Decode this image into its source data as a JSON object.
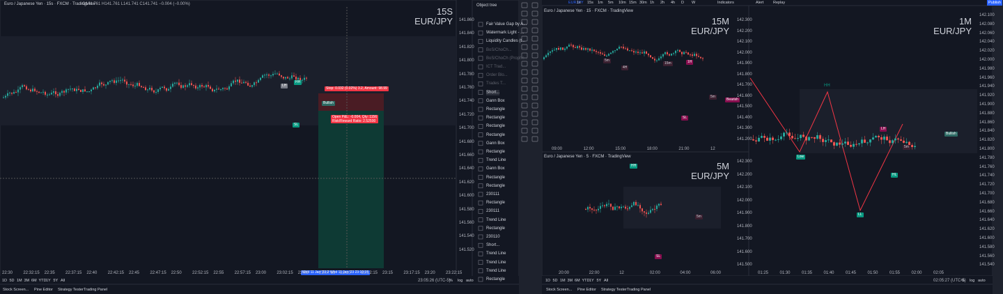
{
  "left_chart": {
    "title": "Euro / Japanese Yen · 15s · FXCM · TradingView",
    "ohlc": "O141.761 H141.761 L141.741 C141.741 −0.004 (−0.00%)",
    "watermark": [
      "15S",
      "EUR/JPY"
    ],
    "price_ticks": [
      "141.860",
      "141.840",
      "141.820",
      "141.800",
      "141.780",
      "141.760",
      "141.740",
      "141.720",
      "141.700",
      "141.680",
      "141.660",
      "141.640",
      "141.620",
      "141.600",
      "141.580",
      "141.560",
      "141.540",
      "141.520"
    ],
    "time_ticks": [
      "22:30",
      "22:32:15",
      "22:35",
      "22:37:15",
      "22:40",
      "22:42:15",
      "22:45",
      "22:47:15",
      "22:50",
      "22:52:15",
      "22:55",
      "22:57:15",
      "23:00",
      "23:02:15",
      "23:05",
      "23:07:15",
      "23:10",
      "23:12:15",
      "23:15",
      "23:17:15",
      "23:20",
      "23:22:15"
    ],
    "date_labels": [
      "Wed 11 Jan '23 23:0",
      "Wed 11 Jan '23 23:10:15"
    ],
    "labels": {
      "hh": "HH",
      "lh": "LH",
      "sl": "SL",
      "bullish": "Bullish"
    },
    "position": {
      "stop": "Stop: 0.032 (0.02%) 3.2, Amount: 98.99",
      "open": "Open P&L: -0.004, Qty: 1156",
      "ratio": "Risk/Reward Ratio: 2.52500"
    },
    "clock": "23:05:26 (UTC-5)"
  },
  "object_tree": {
    "title": "Object tree",
    "items": [
      "Fair Value Gap by A...",
      "Watermark Light - ...",
      "Liquidity Candles (t...",
      "BoS/ChoCh...",
      "BoS/ChoCh (Prophe...",
      "ICT Trad...",
      "Order Blo...",
      "Trades T...",
      "Short...",
      "Gann Box",
      "Rectangle",
      "Rectangle",
      "Rectangle",
      "Rectangle",
      "Gann Box",
      "Rectangle",
      "Trend Line",
      "Gann Box",
      "Rectangle",
      "Rectangle",
      "230111",
      "Rectangle",
      "230111",
      "Trend Line",
      "Rectangle",
      "230110",
      "Short...",
      "Trend Line",
      "Trend Line",
      "Trend Line",
      "Rectangle"
    ]
  },
  "top_bar": {
    "symbol": "EURJPY",
    "timeframes": [
      "1s",
      "15s",
      "1m",
      "5m",
      "10m",
      "15m",
      "30m",
      "1h",
      "2h",
      "4h",
      "D",
      "W"
    ],
    "indicators": "Indicators",
    "alert": "Alert",
    "replay": "Replay",
    "publish": "Publish"
  },
  "chart_15m": {
    "title": "Euro / Japanese Yen · 15 · FXCM · TradingView",
    "watermark": [
      "15M",
      "EUR/JPY"
    ],
    "price_ticks": [
      "142.300",
      "142.200",
      "142.100",
      "142.000",
      "141.900",
      "141.800",
      "141.700",
      "141.600",
      "141.500",
      "141.400",
      "141.300",
      "141.200"
    ],
    "time_ticks": [
      "09:00",
      "12:00",
      "15:00",
      "18:00",
      "21:00",
      "12"
    ],
    "labels": {
      "m5": "5m",
      "h4": "4H",
      "m15": "15m",
      "h1": "1H",
      "sl": "SL",
      "bearish": "Bearish"
    }
  },
  "chart_5m": {
    "title": "Euro / Japanese Yen · 5 · FXCM · TradingView",
    "watermark": [
      "5M",
      "EUR/JPY"
    ],
    "price_ticks": [
      "142.300",
      "142.200",
      "142.100",
      "142.000",
      "141.900",
      "141.800",
      "141.700",
      "141.600",
      "141.500"
    ],
    "time_ticks": [
      "20:00",
      "22:00",
      "12",
      "02:00",
      "04:00",
      "06:00"
    ],
    "labels": {
      "hh": "HH",
      "m5": "5m",
      "sl": "SL"
    }
  },
  "chart_1m": {
    "watermark": [
      "1M",
      "EUR/JPY"
    ],
    "price_ticks": [
      "142.100",
      "142.080",
      "142.060",
      "142.040",
      "142.020",
      "142.000",
      "141.980",
      "141.960",
      "141.940",
      "141.920",
      "141.900",
      "141.880",
      "141.860",
      "141.840",
      "141.820",
      "141.800",
      "141.780",
      "141.760",
      "141.740",
      "141.720",
      "141.700",
      "141.680",
      "141.660",
      "141.640",
      "141.620",
      "141.600",
      "141.580",
      "141.560",
      "141.540"
    ],
    "time_ticks": [
      "01:25",
      "01:30",
      "01:35",
      "01:40",
      "01:45",
      "01:50",
      "01:55",
      "02:00",
      "02:05"
    ],
    "labels": {
      "hh": "HH",
      "lh": "LH",
      "hl": "HL",
      "ll": "LL",
      "low": "Low",
      "bullish": "Bullish",
      "m5": "5m"
    },
    "clock": "02:05:27 (UTC-5)"
  },
  "ranges": [
    "1D",
    "5D",
    "1M",
    "3M",
    "6M",
    "YTD",
    "1Y",
    "5Y",
    "All"
  ],
  "axis_opts": [
    "%",
    "log",
    "auto"
  ],
  "tabs": [
    "Stock Screen...",
    "Pine Editor",
    "Strategy Tester",
    "Trading Panel"
  ]
}
